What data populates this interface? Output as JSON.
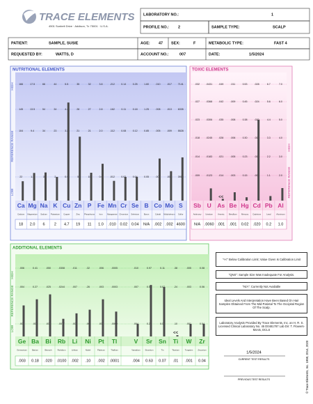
{
  "header": {
    "logo": "TRACE ELEMENTS",
    "address": "4501 Sunbelt Drive · Addison, Tx 75001 · U.S.A."
  },
  "info": {
    "lab_no_label": "LABORATORY NO.:",
    "lab_no": "1",
    "profile_label": "PROFILE NO.:",
    "profile": "2",
    "sample_type_label": "SAMPLE TYPE:",
    "sample_type": "SCALP",
    "patient_label": "PATIENT:",
    "patient": "SAMPLE, SUSIE",
    "age_label": "AGE:",
    "age": "47",
    "sex_label": "SEX:",
    "sex": "F",
    "metabolic_label": "METABOLIC TYPE:",
    "metabolic": "FAST 4",
    "requested_label": "REQUESTED BY:",
    "requested": "WATTS, D",
    "account_label": "ACCOUNT NO.:",
    "account": "007",
    "date_label": "DATE:",
    "date": "1/5/2024"
  },
  "nutritional": {
    "title": "NUTRITIONAL ELEMENTS",
    "high": "HIGH",
    "range": "REFERENCE RANGE",
    "low": "LOW",
    "elements": [
      {
        "symbol": "Ca",
        "name": "Calcium",
        "value": "18",
        "scale": [
          "166",
          "145",
          "104",
          "22"
        ]
      },
      {
        "symbol": "Mg",
        "name": "Magnesium",
        "value": "2.0",
        "scale": [
          "17.5",
          "13.5",
          "9.4",
          "1.3"
        ]
      },
      {
        "symbol": "Na",
        "name": "Sodium",
        "value": "6",
        "scale": [
          "66",
          "54",
          "34",
          "3"
        ]
      },
      {
        "symbol": "K",
        "name": "Potassium",
        "value": "2",
        "scale": [
          "44",
          "34",
          "23",
          "2"
        ]
      },
      {
        "symbol": "Cu",
        "name": "Copper",
        "value": "4.7",
        "scale": [
          "5.5",
          "4.4",
          "3.2",
          "0.9"
        ]
      },
      {
        "symbol": "Zn",
        "name": "Zinc",
        "value": "19",
        "scale": [
          "35",
          "28",
          "21",
          "5"
        ]
      },
      {
        "symbol": "P",
        "name": "Phosphorus",
        "value": "11",
        "scale": [
          "32",
          "27",
          "21",
          "10"
        ]
      },
      {
        "symbol": "Fe",
        "name": "Iron",
        "value": "1.0",
        "scale": [
          "3.8",
          "2.8",
          "2.0",
          "0.6"
        ]
      },
      {
        "symbol": "Mn",
        "name": "Manganese",
        "value": ".010",
        "scale": [
          ".212",
          ".162",
          ".112",
          ".012"
        ]
      },
      {
        "symbol": "Cr",
        "name": "Chromium",
        "value": "0.02",
        "scale": [
          "0.14",
          "0.11",
          "0.08",
          "0.02"
        ]
      },
      {
        "symbol": "Se",
        "name": "Selenium",
        "value": "0.04",
        "scale": [
          "0.25",
          "0.18",
          "0.12",
          "0.04"
        ]
      },
      {
        "symbol": "B",
        "name": "Boron",
        "value": "N/A",
        "scale": [
          "1.60",
          "1.25",
          "0.85",
          "0.05"
        ]
      },
      {
        "symbol": "Co",
        "name": "Cobalt",
        "value": ".002",
        "scale": [
          ".010",
          ".008",
          ".005",
          ".000"
        ]
      },
      {
        "symbol": "Mo",
        "name": "Molybdenum",
        "value": ".002",
        "scale": [
          ".017",
          ".013",
          ".009",
          ".001"
        ]
      },
      {
        "symbol": "S",
        "name": "Sulfur",
        "value": "4600",
        "scale": [
          "7141",
          "6335",
          "5528",
          "3915"
        ]
      }
    ]
  },
  "toxic": {
    "title": "TOXIC ELEMENTS",
    "high": "HIGH",
    "range": "REFERENCE RANGE",
    "elements": [
      {
        "symbol": "Sb",
        "name": "Antimony",
        "value": "N/A",
        "scale": [
          ".032",
          ".027",
          ".023",
          ".018",
          ".014",
          ".009"
        ]
      },
      {
        "symbol": "U",
        "name": "Uranium",
        "value": ".0060",
        "scale": [
          ".0431",
          ".0368",
          ".0306",
          ".0245",
          ".0183",
          ".0123"
        ]
      },
      {
        "symbol": "As",
        "name": "Arsenic",
        "value": ".001",
        "flag": "<<",
        "scale": [
          ".049",
          ".042",
          ".035",
          ".028",
          ".021",
          ".014"
        ]
      },
      {
        "symbol": "Be",
        "name": "Beryllium",
        "value": ".001",
        "scale": [
          ".011",
          ".009",
          ".008",
          ".006",
          ".005",
          ".003"
        ]
      },
      {
        "symbol": "Hg",
        "name": "Mercury",
        "value": "0.02",
        "scale": [
          "0.53",
          "0.45",
          "0.38",
          "0.30",
          "0.23",
          "0.15"
        ]
      },
      {
        "symbol": "Cd",
        "name": "Cadmium",
        "value": ".020",
        "scale": [
          ".028",
          ".024",
          ".020",
          ".016",
          ".012",
          ".008"
        ]
      },
      {
        "symbol": "Pb",
        "name": "Lead",
        "value": "0.2",
        "scale": [
          "6.7",
          "5.6",
          "4.4",
          "3.3",
          "2.2",
          "1.1"
        ]
      },
      {
        "symbol": "Al",
        "name": "Aluminum",
        "value": "1.0",
        "scale": [
          "7.0",
          "6.0",
          "5.0",
          "4.0",
          "3.0",
          "2.0"
        ]
      }
    ]
  },
  "additional": {
    "title": "ADDITIONAL ELEMENTS",
    "high": "HIGH",
    "range": "REFERENCE RANGE",
    "low": "LOW",
    "elements": [
      {
        "symbol": "Ge",
        "name": "Germanium",
        "value": ".003",
        "scale": [
          ".006",
          ".004",
          ".002"
        ]
      },
      {
        "symbol": "Ba",
        "name": "Barium",
        "value": "0.18",
        "scale": [
          "0.41",
          "0.27",
          ".000"
        ]
      },
      {
        "symbol": "Bi",
        "name": "Bismuth",
        "value": ".020",
        "scale": [
          ".050",
          ".025",
          ".000"
        ]
      },
      {
        "symbol": "Rb",
        "name": "Rubidium",
        "value": ".0100",
        "scale": [
          ".0308",
          ".0244",
          ".0077"
        ]
      },
      {
        "symbol": "Li",
        "name": "Lithium",
        "value": ".002",
        "scale": [
          ".011",
          ".007",
          ".000"
        ]
      },
      {
        "symbol": "Ni",
        "name": "Nickel",
        "value": ".10",
        "scale": [
          ".32",
          ".26",
          ".00"
        ]
      },
      {
        "symbol": "Pt",
        "name": "Platinum",
        "value": ".002",
        "scale": [
          ".006",
          ".003",
          ".000"
        ]
      },
      {
        "symbol": "Tl",
        "name": "Thallium",
        "value": ".0001",
        "scale": [
          ".0005",
          ".0003",
          ".0000"
        ]
      },
      {
        "symbol": "V",
        "name": "Vanadium",
        "value": ".004",
        "scale": [
          ".010",
          ".007",
          ".004"
        ]
      },
      {
        "symbol": "Sr",
        "name": "Strontium",
        "value": "0.63",
        "scale": [
          "0.97",
          "0.59",
          "0.21"
        ]
      },
      {
        "symbol": "Sn",
        "name": "Tin",
        "value": "0.07",
        "scale": [
          "0.11",
          "0.07",
          "0.03"
        ]
      },
      {
        "symbol": "Ti",
        "name": "Titanium",
        "value": ".01",
        "flag": "<<",
        "scale": [
          ".38",
          ".24",
          ".10"
        ]
      },
      {
        "symbol": "W",
        "name": "Tungsten",
        "value": ".001",
        "scale": [
          ".005",
          ".003",
          ".001"
        ]
      },
      {
        "symbol": "Zr",
        "name": "Zirconium",
        "value": "0.04",
        "scale": [
          "0.08",
          "0.06",
          "0.04"
        ]
      }
    ]
  },
  "notes": [
    "\"<<\" Below Calibration Limit; Value Given Is Calibration Limit",
    "\"QNS\": Sample Size Was Inadequate For Analysis.",
    "\"N/A\": Currently Not Available",
    "Ideal Levels And Interpretation Have Been Based On Hair Samples Obtained From The Mid-Parietal To The Occipital Region Of The Scalp.",
    "Laboratory Analysis Provided By Trace Elements, Inc. an H. R. S. Licensed Clinical Laboratory No. 45 D0481787 Lab Dir: T. Flowers-Monis, DCLS"
  ],
  "results": {
    "current_date": "1/5/2024",
    "current_label": "CURRENT TEST RESULTS",
    "previous_label": "PREVIOUS TEST RESULTS"
  },
  "copyright": "© Trace Elements, Inc. 1998, 2014, 2020"
}
